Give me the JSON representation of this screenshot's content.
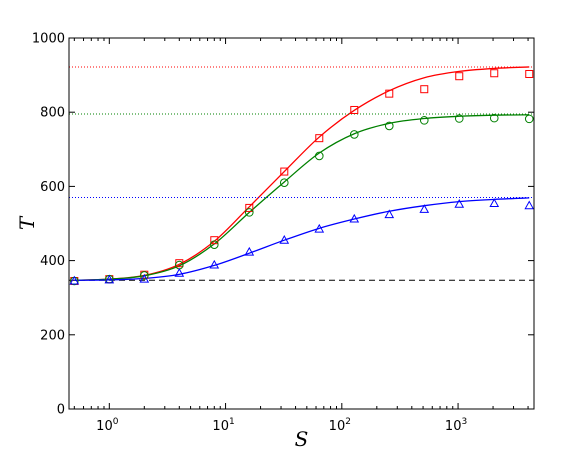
{
  "chart_data": {
    "type": "line",
    "xlabel": "S",
    "ylabel": "T",
    "x_scale": "log",
    "xlim": [
      0.45,
      4500
    ],
    "ylim": [
      0,
      1000
    ],
    "y_ticks": [
      0,
      200,
      400,
      600,
      800,
      1000
    ],
    "x_ticks": [
      {
        "value": 1,
        "base": "10",
        "exp": "0"
      },
      {
        "value": 10,
        "base": "10",
        "exp": "1"
      },
      {
        "value": 100,
        "base": "10",
        "exp": "2"
      },
      {
        "value": 1000,
        "base": "10",
        "exp": "3"
      }
    ],
    "grid": false,
    "baseline": {
      "y": 347,
      "color": "#000000",
      "style": "dashed"
    },
    "series": [
      {
        "color": "#ff0000",
        "marker": "square",
        "asymptote": 922,
        "x": [
          0.5,
          1,
          2,
          4,
          8,
          16,
          32,
          64,
          128,
          256,
          512,
          1024,
          2048,
          4096
        ],
        "points": [
          345,
          350,
          362,
          393,
          455,
          542,
          640,
          730,
          806,
          850,
          862,
          897,
          905,
          903
        ],
        "curve": [
          347,
          350,
          360,
          390,
          452,
          545,
          640,
          733,
          805,
          858,
          893,
          910,
          918,
          922
        ]
      },
      {
        "color": "#008000",
        "marker": "circle",
        "asymptote": 795,
        "x": [
          0.5,
          1,
          2,
          4,
          8,
          16,
          32,
          64,
          128,
          256,
          512,
          1024,
          2048,
          4096
        ],
        "points": [
          345,
          350,
          360,
          388,
          443,
          530,
          610,
          682,
          740,
          763,
          778,
          783,
          784,
          782
        ],
        "curve": [
          347,
          350,
          359,
          386,
          445,
          530,
          612,
          690,
          742,
          770,
          783,
          789,
          792,
          793
        ]
      },
      {
        "color": "#0000ff",
        "marker": "triangle",
        "asymptote": 570,
        "x": [
          0.5,
          1,
          2,
          4,
          8,
          16,
          32,
          64,
          128,
          256,
          512,
          1024,
          2048,
          4096
        ],
        "points": [
          345,
          348,
          350,
          366,
          388,
          423,
          455,
          485,
          512,
          524,
          538,
          552,
          554,
          548
        ],
        "curve": [
          347,
          348,
          352,
          363,
          387,
          420,
          455,
          487,
          512,
          533,
          548,
          559,
          565,
          569
        ]
      }
    ]
  }
}
